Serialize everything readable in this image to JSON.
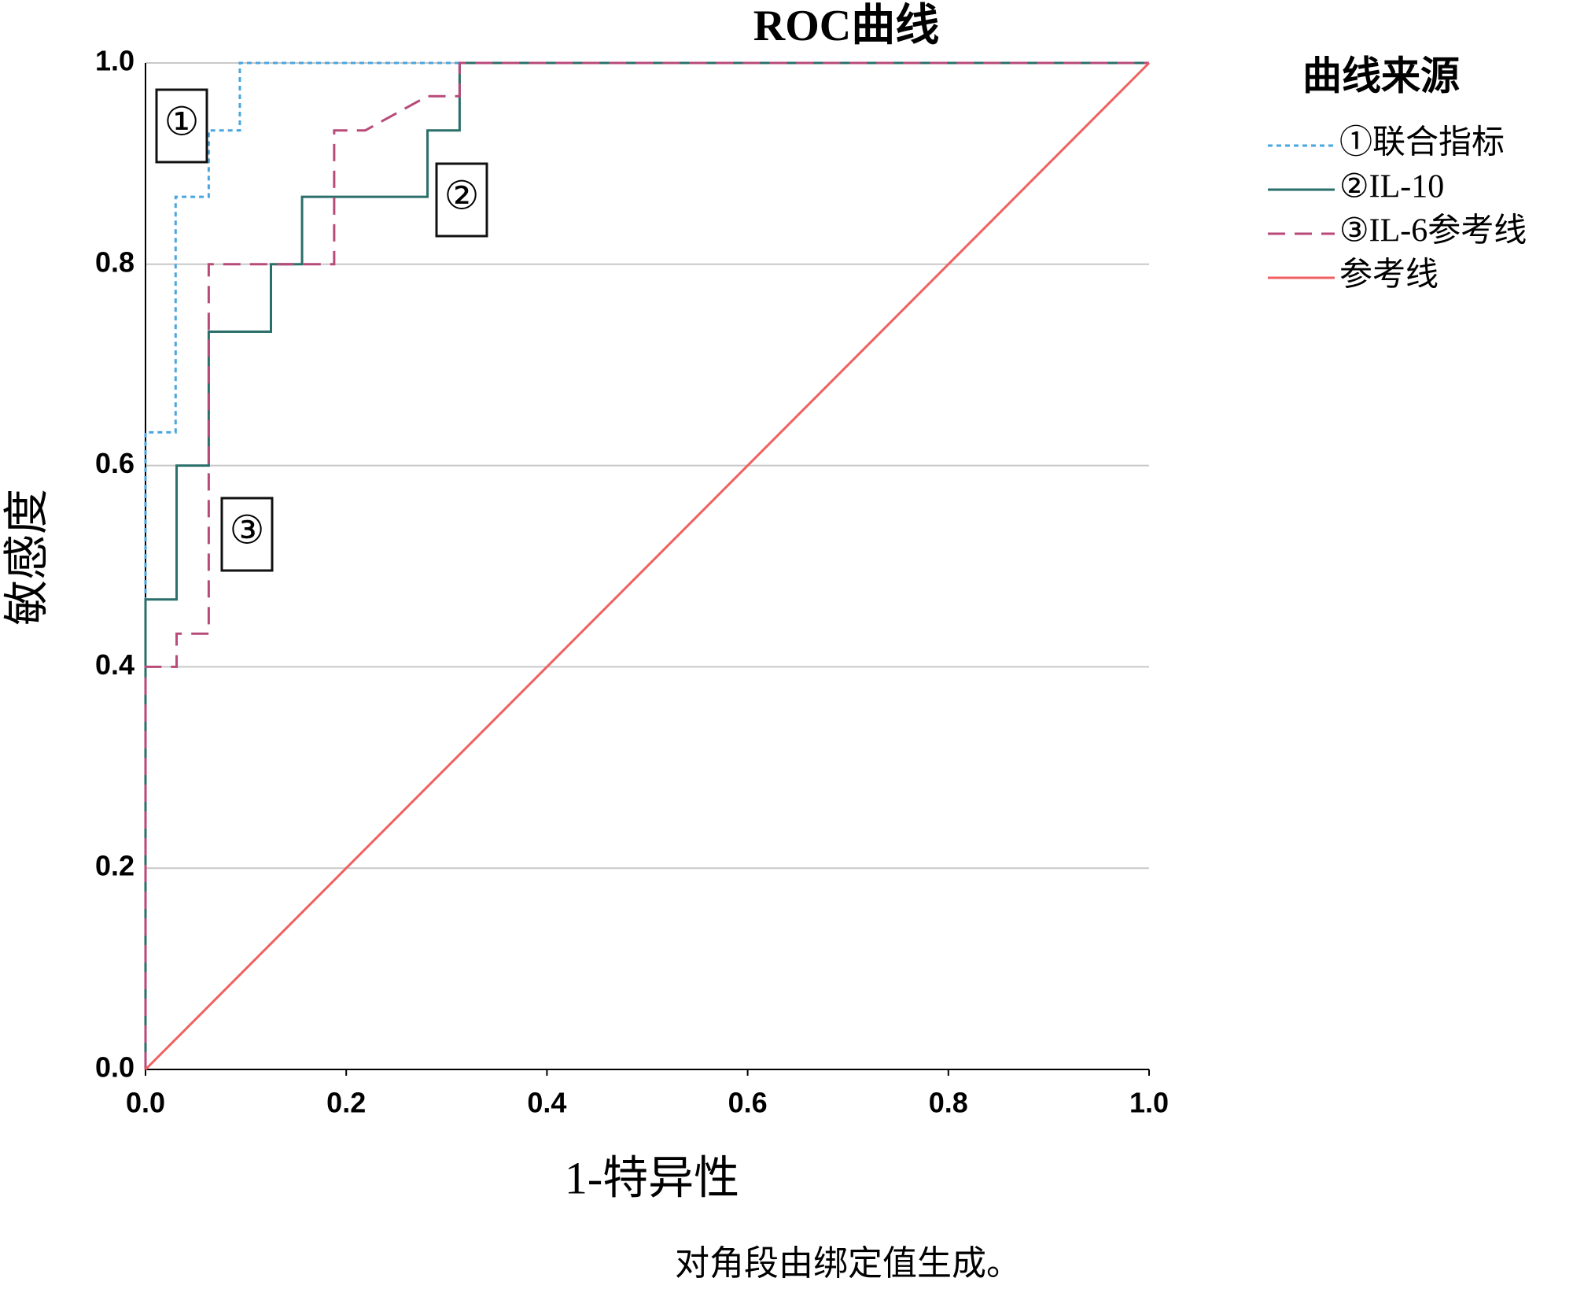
{
  "chart_data": {
    "type": "line",
    "title": "ROC曲线",
    "x_label": "1-特异性",
    "y_label": "敏感度",
    "footnote": "对角段由绑定值生成。",
    "legend_title": "曲线来源",
    "legend_position": "right",
    "xlim": [
      0,
      1
    ],
    "ylim": [
      0,
      1
    ],
    "xticks": [
      {
        "value": 0,
        "label": "0.0"
      },
      0.2,
      0.4,
      0.6,
      0.8,
      {
        "value": 1,
        "label": "1.0"
      }
    ],
    "yticks": [
      {
        "value": 0,
        "label": "0.0"
      },
      0.2,
      0.4,
      0.6,
      0.8,
      {
        "value": 1,
        "label": "1.0"
      }
    ],
    "grid": true,
    "annotations": [
      "①",
      "②",
      "③"
    ],
    "series": [
      {
        "name": "①联合指标",
        "color": "#4aa6e0",
        "dash": "dotted",
        "x": [
          0,
          0,
          0.03,
          0.03,
          0.063,
          0.063,
          0.094,
          0.094,
          1
        ],
        "values": [
          0,
          0.633,
          0.633,
          0.867,
          0.867,
          0.933,
          0.933,
          1,
          1
        ]
      },
      {
        "name": "②IL-10",
        "color": "#2a6f6a",
        "dash": "solid",
        "x": [
          0,
          0,
          0.031,
          0.031,
          0.063,
          0.063,
          0.125,
          0.125,
          0.156,
          0.156,
          0.281,
          0.281,
          0.313,
          0.313,
          1
        ],
        "values": [
          0,
          0.467,
          0.467,
          0.6,
          0.6,
          0.733,
          0.733,
          0.8,
          0.8,
          0.867,
          0.867,
          0.933,
          0.933,
          1,
          1
        ]
      },
      {
        "name": "③IL-6参考线",
        "color": "#b84a7a",
        "dash": "dashed",
        "x": [
          0,
          0,
          0.031,
          0.031,
          0.063,
          0.063,
          0.188,
          0.188,
          0.219,
          0.281,
          0.313,
          0.313,
          1
        ],
        "values": [
          0,
          0.4,
          0.4,
          0.433,
          0.433,
          0.8,
          0.8,
          0.933,
          0.933,
          0.967,
          0.967,
          1,
          1
        ]
      },
      {
        "name": "参考线",
        "color": "#f06060",
        "dash": "solid",
        "x": [
          0,
          1
        ],
        "values": [
          0,
          1
        ]
      }
    ]
  }
}
